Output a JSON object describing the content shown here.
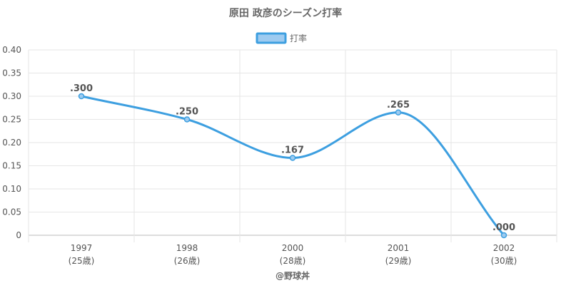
{
  "chart_data": {
    "type": "line",
    "title": "原田 政彦のシーズン打率",
    "legend": {
      "label": "打率",
      "placement": "top-center"
    },
    "categories": [
      "1997",
      "1998",
      "2000",
      "2001",
      "2002"
    ],
    "category_sublabels": [
      "(25歳)",
      "(26歳)",
      "(28歳)",
      "(29歳)",
      "(30歳)"
    ],
    "series": [
      {
        "name": "打率",
        "values": [
          0.3,
          0.25,
          0.167,
          0.265,
          0.0
        ],
        "data_labels": [
          ".300",
          ".250",
          ".167",
          ".265",
          ".000"
        ]
      }
    ],
    "ylim": [
      0,
      0.4
    ],
    "y_ticks": [
      0,
      0.05,
      0.1,
      0.15,
      0.2,
      0.25,
      0.3,
      0.35,
      0.4
    ],
    "y_tick_labels": [
      "0",
      "0.05",
      "0.10",
      "0.15",
      "0.20",
      "0.25",
      "0.30",
      "0.35",
      "0.40"
    ],
    "grid": true,
    "smooth": true,
    "credit": "@野球丼"
  },
  "colors": {
    "line": "#3d9fe0",
    "legend_fill": "#9ecbf0",
    "legend_stroke": "#3d9fe0",
    "grid": "#e6e6e6",
    "axis": "#bbbbbb",
    "title_text": "#666666",
    "label_text": "#555555",
    "data_label_text": "#555555"
  }
}
